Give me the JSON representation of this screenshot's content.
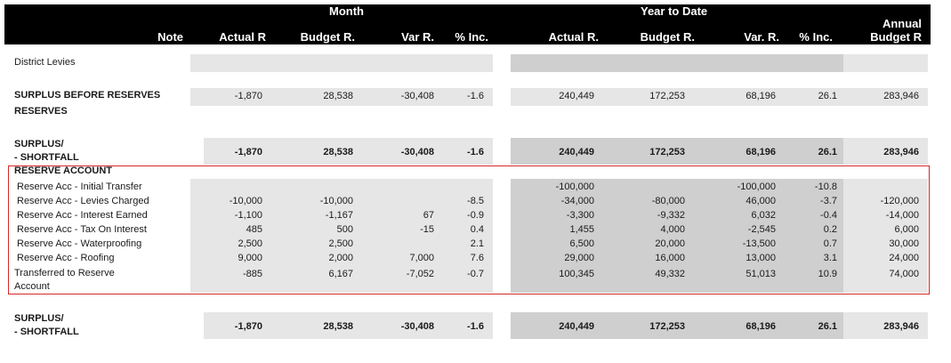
{
  "header": {
    "month": "Month",
    "ytd": "Year to Date",
    "note": "Note",
    "actual_r": "Actual R",
    "budget_r_dot": "Budget R.",
    "var_r": "Var R.",
    "pct_inc": "% Inc.",
    "actual_r_dot": "Actual R.",
    "ytd_budget_r": "Budget R.",
    "ytd_var_r": "Var. R.",
    "ytd_pct_inc": "% Inc.",
    "annual_1": "Annual",
    "annual_2": "Budget R"
  },
  "district_levies": "District Levies",
  "surplus_before": {
    "label1": "SURPLUS BEFORE  RESERVES",
    "label2": "RESERVES",
    "values": [
      "-1,870",
      "28,538",
      "-30,408",
      "-1.6",
      "240,449",
      "172,253",
      "68,196",
      "26.1",
      "283,946"
    ]
  },
  "surplus1": {
    "label1": "SURPLUS/",
    "label2": "- SHORTFALL",
    "values": [
      "-1,870",
      "28,538",
      "-30,408",
      "-1.6",
      "240,449",
      "172,253",
      "68,196",
      "26.1",
      "283,946"
    ]
  },
  "reserve": {
    "title": "RESERVE ACCOUNT",
    "rows": [
      {
        "label": "Reserve Acc - Initial Transfer",
        "values": [
          "",
          "",
          "",
          "",
          "-100,000",
          "",
          "-100,000",
          "-10.8",
          ""
        ]
      },
      {
        "label": "Reserve Acc - Levies Charged",
        "values": [
          "-10,000",
          "-10,000",
          "",
          "-8.5",
          "-34,000",
          "-80,000",
          "46,000",
          "-3.7",
          "-120,000"
        ]
      },
      {
        "label": "Reserve Acc - Interest Earned",
        "values": [
          "-1,100",
          "-1,167",
          "67",
          "-0.9",
          "-3,300",
          "-9,332",
          "6,032",
          "-0.4",
          "-14,000"
        ]
      },
      {
        "label": "Reserve Acc - Tax On Interest",
        "values": [
          "485",
          "500",
          "-15",
          "0.4",
          "1,455",
          "4,000",
          "-2,545",
          "0.2",
          "6,000"
        ]
      },
      {
        "label": "Reserve Acc - Waterproofing",
        "values": [
          "2,500",
          "2,500",
          "",
          "2.1",
          "6,500",
          "20,000",
          "-13,500",
          "0.7",
          "30,000"
        ]
      },
      {
        "label": "Reserve Acc - Roofing",
        "values": [
          "9,000",
          "2,000",
          "7,000",
          "7.6",
          "29,000",
          "16,000",
          "13,000",
          "3.1",
          "24,000"
        ]
      }
    ],
    "transfer": {
      "label1": "Transferred to Reserve",
      "label2": "Account",
      "values": [
        "-885",
        "6,167",
        "-7,052",
        "-0.7",
        "100,345",
        "49,332",
        "51,013",
        "10.9",
        "74,000"
      ]
    }
  },
  "surplus2": {
    "label1": "SURPLUS/",
    "label2": "- SHORTFALL",
    "values": [
      "-1,870",
      "28,538",
      "-30,408",
      "-1.6",
      "240,449",
      "172,253",
      "68,196",
      "26.1",
      "283,946"
    ]
  }
}
